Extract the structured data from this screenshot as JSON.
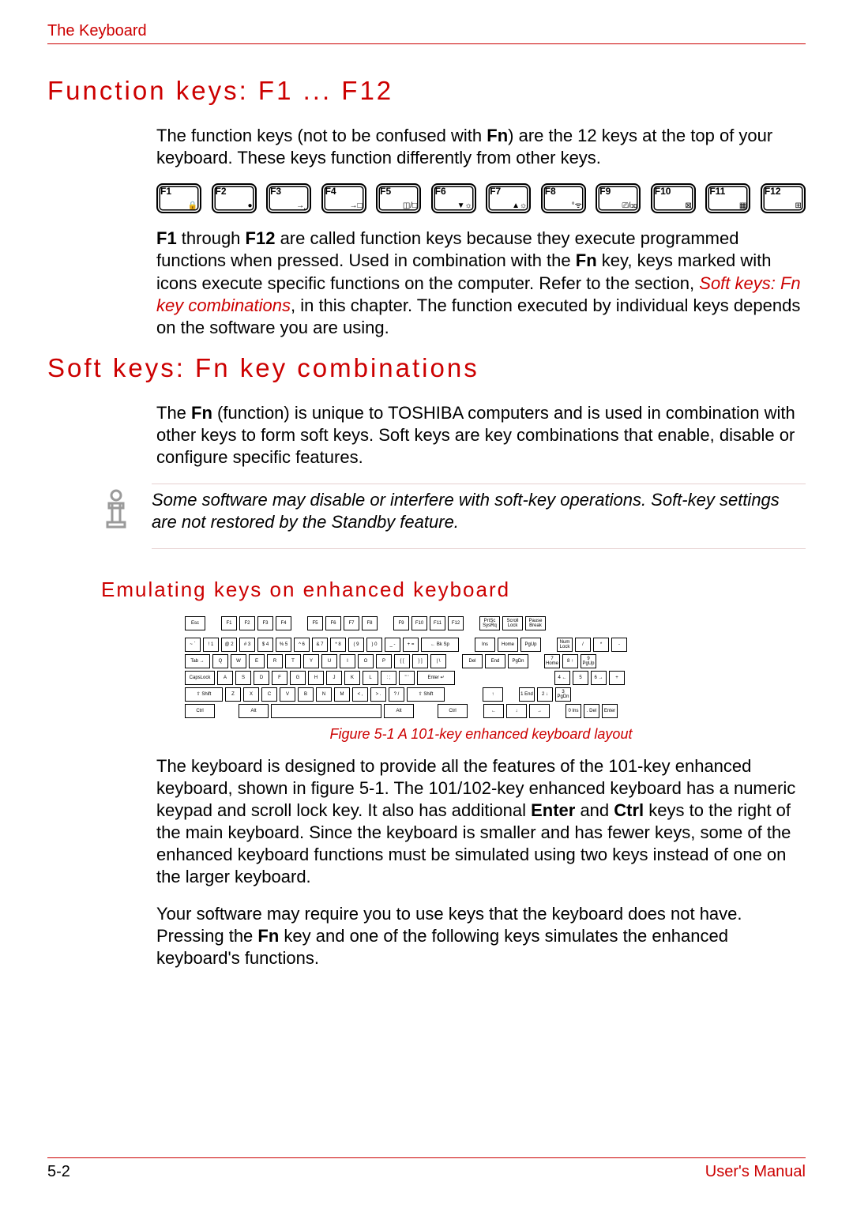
{
  "colors": {
    "accent": "#cc0000",
    "text": "#000000",
    "rule_faint": "#e6cfcf",
    "background": "#ffffff"
  },
  "header": {
    "section_label": "The Keyboard"
  },
  "h1_function": "Function keys: F1 ... F12",
  "p_function_intro_a": "The function keys (not to be confused with ",
  "p_function_intro_b": "Fn",
  "p_function_intro_c": ") are the 12 keys at the top of your keyboard. These keys function differently from other keys.",
  "fkeys": [
    {
      "label": "F1",
      "icon": "🔒"
    },
    {
      "label": "F2",
      "icon": "●"
    },
    {
      "label": "F3",
      "icon": "→⎵"
    },
    {
      "label": "F4",
      "icon": "→□"
    },
    {
      "label": "F5",
      "icon": "◫/□"
    },
    {
      "label": "F6",
      "icon": "▼☼"
    },
    {
      "label": "F7",
      "icon": "▲☼"
    },
    {
      "label": "F8",
      "icon": "°ᯤ"
    },
    {
      "label": "F9",
      "icon": "⎚/⌧"
    },
    {
      "label": "F10",
      "icon": "⊠"
    },
    {
      "label": "F11",
      "icon": "▦"
    },
    {
      "label": "F12",
      "icon": "⊞"
    }
  ],
  "p_function_desc_a": "F1",
  "p_function_desc_b": " through ",
  "p_function_desc_c": "F12",
  "p_function_desc_d": " are called function keys because they execute programmed functions when pressed. Used in combination with the ",
  "p_function_desc_e": "Fn",
  "p_function_desc_f": " key, keys marked with icons execute specific functions on the computer. Refer to the section, ",
  "p_function_desc_link": "Soft keys: Fn key combinations",
  "p_function_desc_g": ", in this chapter. The function executed by individual keys depends on the software you are using.",
  "h1_soft": "Soft keys: Fn key combinations",
  "p_soft_a": "The ",
  "p_soft_b": "Fn",
  "p_soft_c": " (function) is unique to TOSHIBA computers and is used in combination with other keys to form soft keys. Soft keys are key combinations that enable, disable or configure specific features.",
  "note_text": "Some software may disable or interfere with soft-key operations. Soft-key settings are not restored by the Standby feature.",
  "h2_emulating": "Emulating keys on enhanced keyboard",
  "keyboard_101": {
    "row0_left": [
      "Esc"
    ],
    "row0_fn_a": [
      "F1",
      "F2",
      "F3",
      "F4"
    ],
    "row0_fn_b": [
      "F5",
      "F6",
      "F7",
      "F8"
    ],
    "row0_fn_c": [
      "F9",
      "F10",
      "F11",
      "F12"
    ],
    "row0_right": [
      "PrtSc SysRq",
      "Scroll Lock",
      "Pause Break"
    ],
    "row1_main": [
      "~\n`",
      "!\n1",
      "@\n2",
      "#\n3",
      "$\n4",
      "%\n5",
      "^\n6",
      "&\n7",
      "*\n8",
      "(\n9",
      ")\n0",
      "_\n-",
      "+\n=",
      "← Bk Sp"
    ],
    "row1_nav": [
      "Ins",
      "Home",
      "PgUp"
    ],
    "row1_num": [
      "Num Lock",
      "/",
      "*",
      "-"
    ],
    "row2_main": [
      "Tab →",
      "Q",
      "W",
      "E",
      "R",
      "T",
      "Y",
      "U",
      "I",
      "O",
      "P",
      "{\n[",
      "}\n]",
      "|\n\\"
    ],
    "row2_nav": [
      "Del",
      "End",
      "PgDn"
    ],
    "row2_num": [
      "7\nHome",
      "8\n↑",
      "9\nPgUp"
    ],
    "row3_main": [
      "CapsLock",
      "A",
      "S",
      "D",
      "F",
      "G",
      "H",
      "J",
      "K",
      "L",
      ":\n;",
      "\"\n'",
      "Enter ↵"
    ],
    "row3_num": [
      "4\n←",
      "5",
      "6\n→",
      "+"
    ],
    "row4_main": [
      "⇧ Shift",
      "Z",
      "X",
      "C",
      "V",
      "B",
      "N",
      "M",
      "<\n,",
      ">\n.",
      "?\n/",
      "⇧ Shift"
    ],
    "row4_nav": [
      "↑"
    ],
    "row4_num": [
      "1\nEnd",
      "2\n↓",
      "3\nPgDn"
    ],
    "row5_main": [
      "Ctrl",
      "Alt",
      " ",
      "Alt",
      "Ctrl"
    ],
    "row5_nav": [
      "←",
      "↓",
      "→"
    ],
    "row5_num": [
      "0\nIns",
      ".\nDel",
      "Enter"
    ]
  },
  "caption": "Figure 5-1 A 101-key enhanced keyboard layout",
  "p_emul_a": "The keyboard is designed to provide all the features of the 101-key enhanced keyboard, shown in figure 5-1. The 101/102-key enhanced keyboard has a numeric keypad and scroll lock key. It also has additional ",
  "p_emul_b": "Enter",
  "p_emul_c": " and ",
  "p_emul_d": "Ctrl",
  "p_emul_e": " keys to the right of the main keyboard. Since the keyboard is smaller and has fewer keys, some of the enhanced keyboard functions must be simulated using two keys instead of one on the larger keyboard.",
  "p_emul2_a": "Your software may require you to use keys that the keyboard does not have. Pressing the ",
  "p_emul2_b": "Fn",
  "p_emul2_c": " key and one of the following keys simulates the enhanced keyboard's functions.",
  "footer": {
    "page": "5-2",
    "manual": "User's Manual"
  }
}
